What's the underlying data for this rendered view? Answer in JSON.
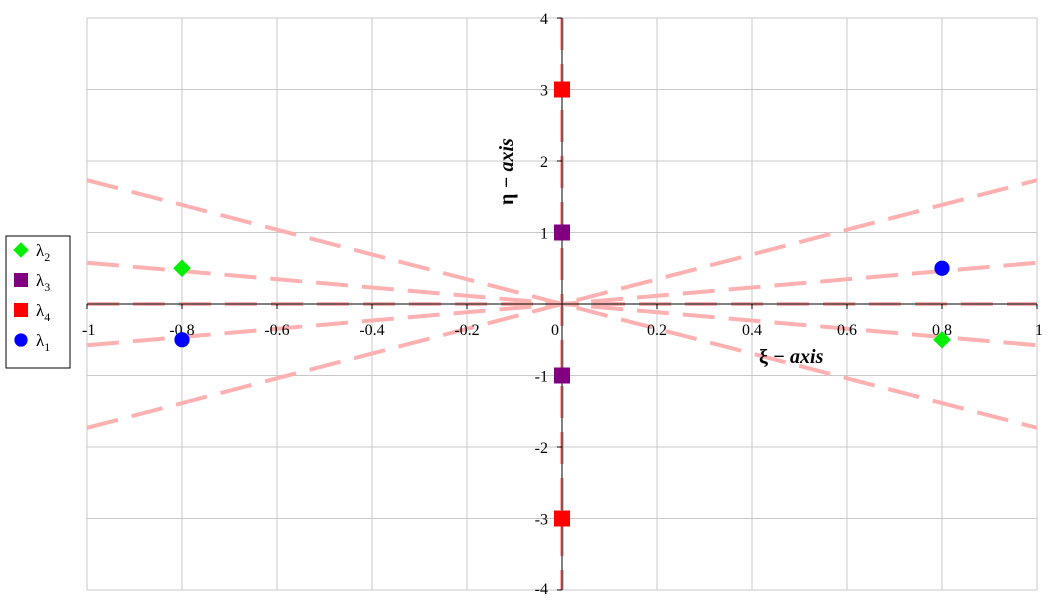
{
  "chart_data": {
    "type": "scatter",
    "xlabel": {
      "symbol": "ξ",
      "text": " − axis"
    },
    "ylabel": {
      "symbol": "η",
      "text": " − axis"
    },
    "xlim": [
      -1,
      1
    ],
    "ylim": [
      -4,
      4
    ],
    "x_ticks": [
      -1,
      -0.8,
      -0.6,
      -0.4,
      -0.2,
      0,
      0.2,
      0.4,
      0.6,
      0.8,
      1
    ],
    "x_tick_labels": [
      "-1",
      "-0.8",
      "-0.6",
      "-0.4",
      "-0.2",
      "0",
      "0.2",
      "0.4",
      "0.6",
      "0.8",
      "1"
    ],
    "y_ticks": [
      -4,
      -3,
      -2,
      -1,
      0,
      1,
      2,
      3,
      4
    ],
    "y_tick_labels": [
      "-4",
      "-3",
      "-2",
      "-1",
      "",
      "1",
      "2",
      "3",
      "4"
    ],
    "grid": true,
    "legend_position": "left",
    "series": [
      {
        "name": "λ",
        "sub": "2",
        "marker": "diamond",
        "color": "#00ee00",
        "x": [
          -0.8,
          0.8
        ],
        "y": [
          0.5,
          -0.5
        ]
      },
      {
        "name": "λ",
        "sub": "3",
        "marker": "square",
        "color": "#800080",
        "x": [
          0,
          0
        ],
        "y": [
          1,
          -1
        ]
      },
      {
        "name": "λ",
        "sub": "4",
        "marker": "square",
        "color": "#ff0000",
        "x": [
          0,
          0
        ],
        "y": [
          3,
          -3
        ]
      },
      {
        "name": "λ",
        "sub": "1",
        "marker": "circle",
        "color": "#0000ff",
        "x": [
          -0.8,
          0.8
        ],
        "y": [
          -0.5,
          0.5
        ]
      }
    ],
    "reference_lines": {
      "style": "dashed",
      "color": "#ffb0b0",
      "slopes": [
        1.732,
        0.577,
        -0.577,
        -1.732
      ],
      "vertical": true,
      "horizontal": true
    }
  }
}
